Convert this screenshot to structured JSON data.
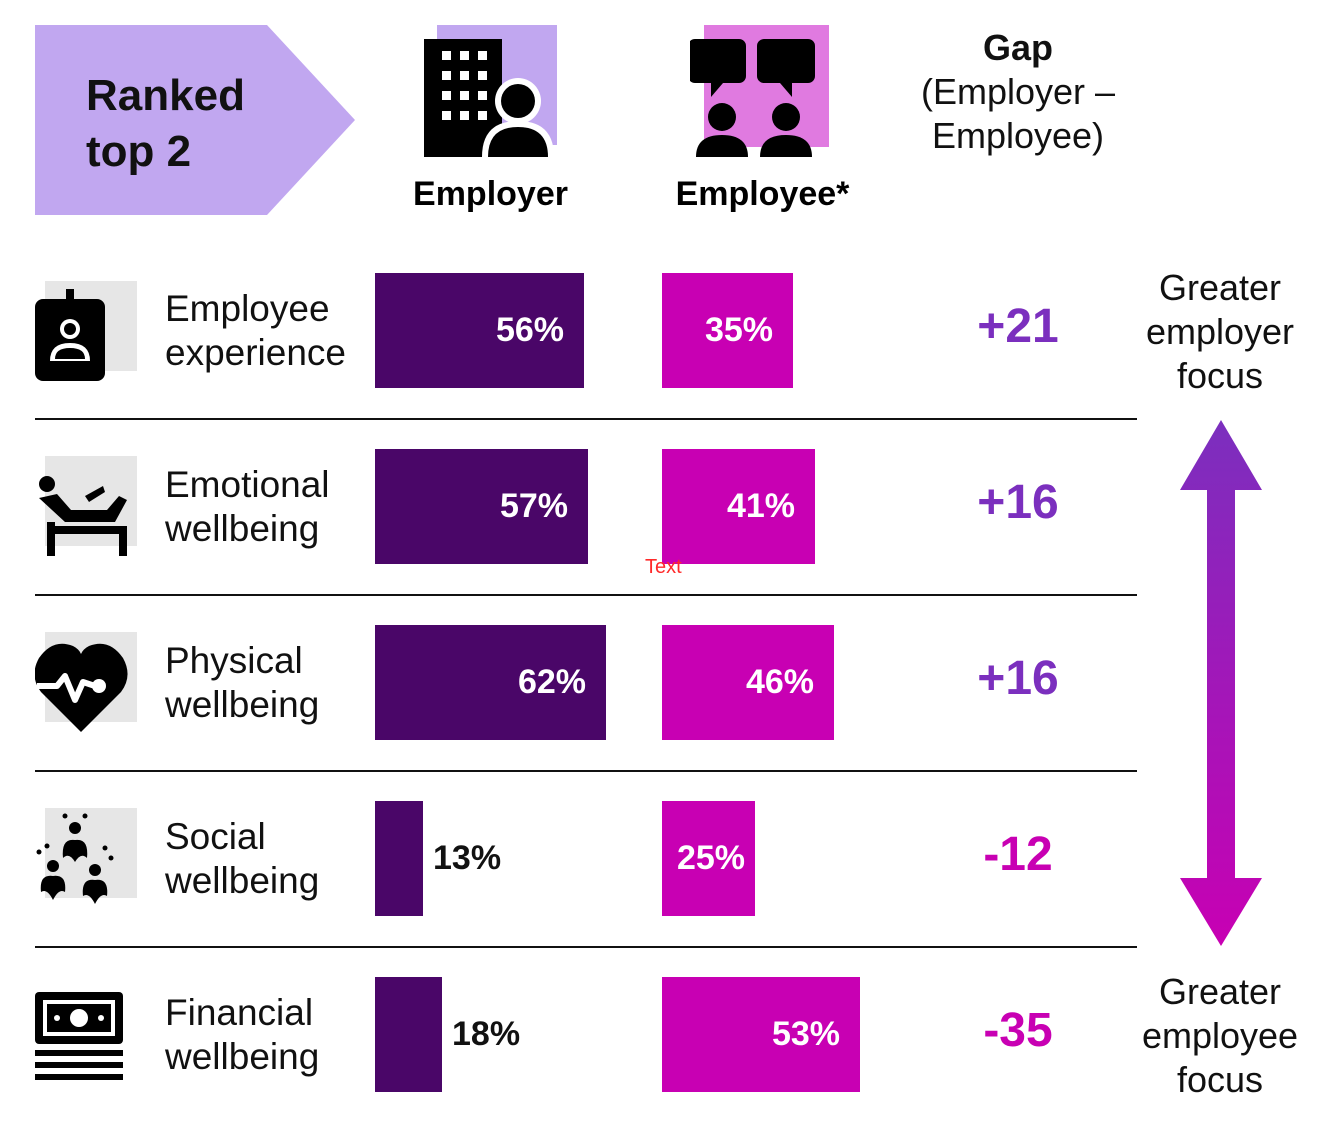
{
  "header": {
    "banner_line1": "Ranked",
    "banner_line2": "top 2",
    "employer_label": "Employer",
    "employee_label": "Employee*",
    "gap_title": "Gap",
    "gap_subtitle": "(Employer – Employee)"
  },
  "side": {
    "top_label": "Greater employer focus",
    "bottom_label": "Greater employee focus"
  },
  "stray_text": "Text",
  "colors": {
    "employer": "#4a0668",
    "employee": "#c800b3",
    "gap_positive": "#7b2fbe",
    "gap_negative": "#c800b3",
    "banner": "#c1a7f0",
    "icon_bg": "#e6e6e6"
  },
  "chart_data": {
    "type": "bar",
    "categories": [
      "Employee experience",
      "Emotional wellbeing",
      "Physical wellbeing",
      "Social wellbeing",
      "Financial wellbeing"
    ],
    "category_lines": [
      [
        "Employee",
        "experience"
      ],
      [
        "Emotional",
        "wellbeing"
      ],
      [
        "Physical",
        "wellbeing"
      ],
      [
        "Social",
        "wellbeing"
      ],
      [
        "Financial",
        "wellbeing"
      ]
    ],
    "icons": [
      "id-badge-icon",
      "lounge-chair-icon",
      "heartbeat-icon",
      "social-hands-icon",
      "money-stack-icon"
    ],
    "series": [
      {
        "name": "Employer",
        "values": [
          56,
          57,
          62,
          13,
          18
        ],
        "labels": [
          "56%",
          "57%",
          "62%",
          "13%",
          "18%"
        ]
      },
      {
        "name": "Employee*",
        "values": [
          35,
          41,
          46,
          25,
          53
        ],
        "labels": [
          "35%",
          "41%",
          "46%",
          "25%",
          "53%"
        ]
      }
    ],
    "gap": {
      "values": [
        21,
        16,
        16,
        -12,
        -35
      ],
      "labels": [
        "+21",
        "+16",
        "+16",
        "-12",
        "-35"
      ]
    },
    "ylim": [
      0,
      100
    ]
  }
}
